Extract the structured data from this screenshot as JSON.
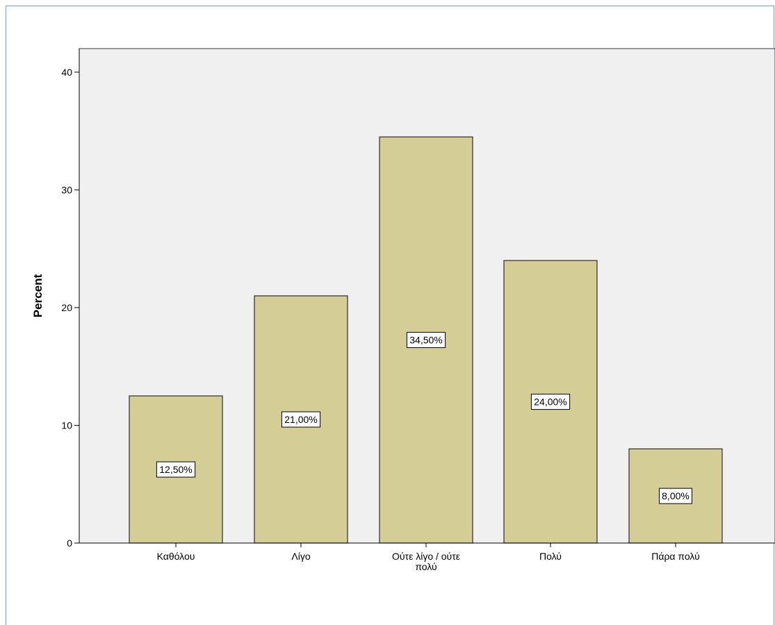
{
  "chart_data": {
    "type": "bar",
    "categories": [
      "Καθόλου",
      "Λίγο",
      "Ούτε λίγο / ούτε πολύ",
      "Πολύ",
      "Πάρα πολύ"
    ],
    "category_lines": [
      [
        "Καθόλου"
      ],
      [
        "Λίγο"
      ],
      [
        "Ούτε λίγο / ούτε",
        "πολύ"
      ],
      [
        "Πολύ"
      ],
      [
        "Πάρα πολύ"
      ]
    ],
    "values": [
      12.5,
      21.0,
      34.5,
      24.0,
      8.0
    ],
    "data_labels": [
      "12,50%",
      "21,00%",
      "34,50%",
      "24,00%",
      "8,00%"
    ],
    "title": "",
    "xlabel": "",
    "ylabel": "Percent",
    "ylim": [
      0,
      42
    ],
    "yticks": [
      0,
      10,
      20,
      30,
      40
    ],
    "ytick_labels": [
      "0",
      "10",
      "20",
      "30",
      "40"
    ],
    "grid": false,
    "legend": "none",
    "colors": {
      "bar_fill": "#d4cd95",
      "bar_stroke": "#2b2b2b",
      "plot_background": "#f0f0f0",
      "frame_border": "#6f9fd8"
    }
  }
}
